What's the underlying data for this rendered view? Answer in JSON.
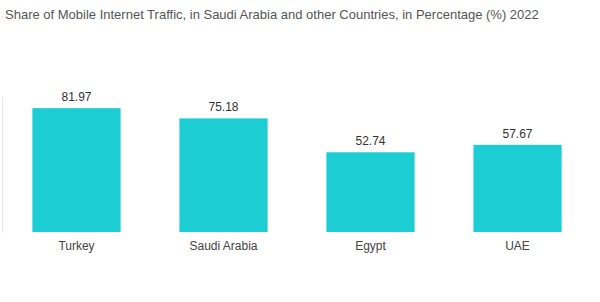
{
  "chart_data": {
    "type": "bar",
    "title": "Share of Mobile Internet Traffic, in Saudi Arabia and other Countries, in Percentage (%) 2022",
    "categories": [
      "Turkey",
      "Saudi Arabia",
      "Egypt",
      "UAE"
    ],
    "values": [
      81.97,
      75.18,
      52.74,
      57.67
    ],
    "color": "#1ccdd4",
    "ylim": [
      0,
      90
    ],
    "data_labels": true,
    "tick_labels": "x"
  }
}
